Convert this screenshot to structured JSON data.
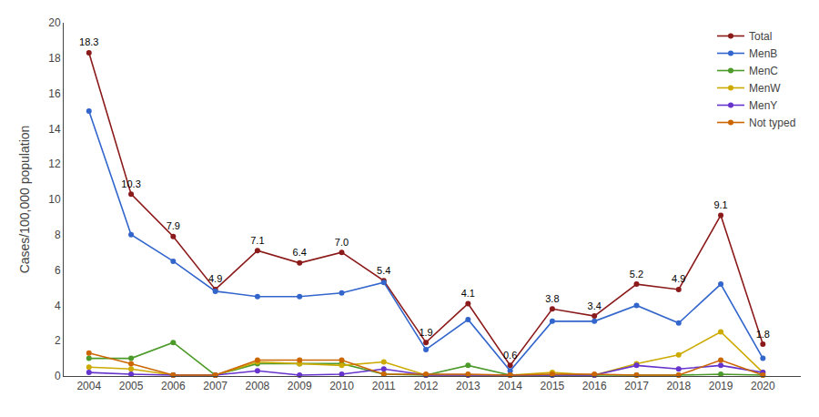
{
  "chart_data": {
    "type": "line",
    "y_label": "Cases/100,000 population",
    "x": [
      2004,
      2005,
      2006,
      2007,
      2008,
      2009,
      2010,
      2011,
      2012,
      2013,
      2014,
      2015,
      2016,
      2017,
      2018,
      2019,
      2020
    ],
    "series": [
      {
        "name": "Total",
        "color": "#8B1A1A",
        "marker": "circle",
        "line_style": "solid",
        "data_labels": true,
        "values": [
          18.3,
          10.3,
          7.9,
          4.9,
          7.1,
          6.4,
          7.0,
          5.4,
          1.9,
          4.1,
          0.6,
          3.8,
          3.4,
          5.2,
          4.9,
          9.1,
          1.8
        ],
        "value_labels": [
          "18.3",
          "10.3",
          "7.9",
          "4.9",
          "7.1",
          "6.4",
          "7.0",
          "5.4",
          "1.9",
          "4.1",
          "0.6",
          "3.8",
          "3.4",
          "5.2",
          "4.9",
          "9.1",
          "1.8"
        ]
      },
      {
        "name": "MenB",
        "color": "#3366CC",
        "marker": "circle",
        "line_style": "solid",
        "values": [
          15.0,
          8.0,
          6.5,
          4.8,
          4.5,
          4.5,
          4.7,
          5.3,
          1.5,
          3.2,
          0.3,
          3.1,
          3.1,
          4.0,
          3.0,
          5.2,
          1.0
        ]
      },
      {
        "name": "MenC",
        "color": "#4C9A2A",
        "marker": "circle",
        "line_style": "solid",
        "values": [
          1.0,
          1.0,
          1.9,
          0.05,
          0.7,
          0.7,
          0.7,
          0.1,
          0.05,
          0.6,
          0.05,
          0.05,
          0.05,
          0.05,
          0.05,
          0.1,
          0.05
        ]
      },
      {
        "name": "MenW",
        "color": "#CCAA00",
        "marker": "circle",
        "line_style": "solid",
        "values": [
          0.5,
          0.4,
          0.05,
          0.05,
          0.8,
          0.7,
          0.6,
          0.8,
          0.05,
          0.05,
          0.05,
          0.2,
          0.05,
          0.7,
          1.2,
          2.5,
          0.2
        ]
      },
      {
        "name": "MenY",
        "color": "#6633CC",
        "marker": "circle",
        "line_style": "solid",
        "values": [
          0.2,
          0.1,
          0.05,
          0.05,
          0.3,
          0.05,
          0.1,
          0.4,
          0.05,
          0.05,
          0.05,
          0.05,
          0.05,
          0.6,
          0.4,
          0.6,
          0.2
        ]
      },
      {
        "name": "Not typed",
        "color": "#CC6600",
        "marker": "circle",
        "line_style": "solid",
        "values": [
          1.3,
          0.7,
          0.05,
          0.05,
          0.9,
          0.9,
          0.9,
          0.1,
          0.1,
          0.1,
          0.05,
          0.1,
          0.1,
          0.05,
          0.05,
          0.9,
          0.05
        ]
      }
    ],
    "xlim": [
      2003.4,
      2020.9
    ],
    "xticks": [
      2004,
      2005,
      2006,
      2007,
      2008,
      2009,
      2010,
      2011,
      2012,
      2013,
      2014,
      2015,
      2016,
      2017,
      2018,
      2019,
      2020
    ],
    "ylim": [
      0,
      20
    ],
    "yticks": [
      0,
      2,
      4,
      6,
      8,
      10,
      12,
      14,
      16,
      18,
      20
    ],
    "grid": false,
    "legend": "upper right"
  }
}
